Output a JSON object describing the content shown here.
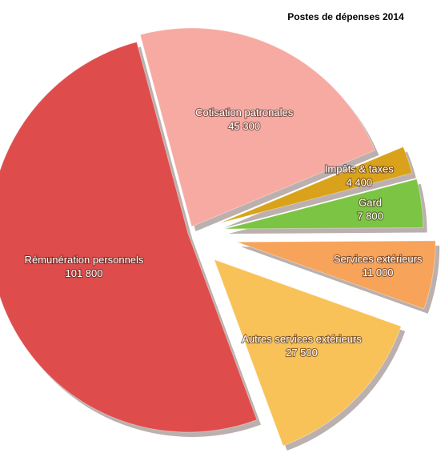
{
  "chart_data": {
    "type": "pie",
    "title": "Postes de dépenses 2014",
    "categories": [
      "Cotisation patronales",
      "Impôts & taxes",
      "Gard",
      "Services extérieurs",
      "Autres services extérieurs",
      "Rémunération personnels"
    ],
    "values": [
      45300,
      4400,
      7800,
      11000,
      27500,
      101800
    ],
    "value_labels": [
      "45 300",
      "4 400",
      "7 800",
      "11 000",
      "27 500",
      "101 800"
    ],
    "colors": [
      "#f6aaa2",
      "#d9a21a",
      "#7cc443",
      "#f7a359",
      "#f8c258",
      "#de4d4b"
    ]
  }
}
